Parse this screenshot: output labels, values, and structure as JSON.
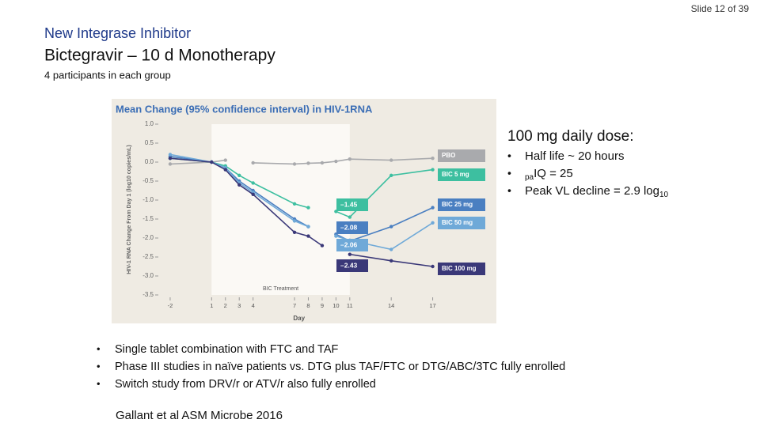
{
  "slide": {
    "number": "Slide 12 of 39",
    "kicker": "New Integrase Inhibitor",
    "title": "Bictegravir – 10 d Monotherapy",
    "subtitle": "4 participants in each group",
    "side_heading": "100 mg daily dose:",
    "side_bullets": [
      {
        "text": "Half life ~ 20 hours"
      },
      {
        "sub": "pa",
        "text": "IQ = 25"
      },
      {
        "text": "Peak VL decline = 2.9 log",
        "sub": "10"
      }
    ],
    "bullets": [
      "Single tablet combination with FTC and TAF",
      "Phase III studies in naïve patients vs. DTG plus TAF/FTC or DTG/ABC/3TC fully enrolled",
      "Switch study from DRV/r or ATV/r also fully enrolled"
    ],
    "citation": "Gallant et al ASM Microbe 2016"
  },
  "chart_data": {
    "type": "line",
    "title": "Mean Change (95% confidence interval) in HIV-1RNA",
    "x_label": "Day",
    "y_label": "HIV-1 RNA Change From Day 1 (log10 copies/mL)",
    "shaded_label": "BIC Treatment",
    "shaded_span": [
      1,
      11
    ],
    "x": [
      -2,
      1,
      2,
      3,
      4,
      7,
      8,
      9,
      10,
      11,
      14,
      17
    ],
    "xlim": [
      -3,
      18
    ],
    "xticks": [
      -2,
      1,
      2,
      3,
      4,
      7,
      8,
      9,
      10,
      11,
      14,
      17
    ],
    "ylim": [
      -3.5,
      1.0
    ],
    "yticks": [
      {
        "value": 1,
        "label": "1.0"
      },
      0.5,
      {
        "value": 0,
        "label": "0.0"
      },
      -0.5,
      {
        "value": -1,
        "label": "-1.0"
      },
      -1.5,
      {
        "value": -2,
        "label": "-2.0"
      },
      -2.5,
      {
        "value": -3,
        "label": "-3.0"
      },
      -3.5
    ],
    "series": [
      {
        "name": "PBO",
        "color": "#a9aaad",
        "values": [
          -0.05,
          0.0,
          0.05,
          null,
          -0.02,
          -0.05,
          -0.03,
          -0.02,
          0.02,
          0.08,
          0.05,
          0.1
        ]
      },
      {
        "name": "BIC 5 mg",
        "color": "#3dbfa0",
        "values": [
          0.1,
          0.0,
          -0.1,
          -0.35,
          -0.55,
          -1.1,
          -1.2,
          null,
          -1.3,
          -1.45,
          -0.35,
          -0.2
        ]
      },
      {
        "name": "BIC 25 mg",
        "color": "#4a7fc1",
        "values": [
          0.15,
          0.0,
          -0.15,
          -0.5,
          -0.75,
          -1.5,
          -1.7,
          null,
          -1.9,
          -2.08,
          -1.7,
          -1.2
        ]
      },
      {
        "name": "BIC 50 mg",
        "color": "#6fa9d8",
        "values": [
          0.2,
          0.0,
          -0.15,
          -0.55,
          -0.8,
          -1.55,
          -1.7,
          null,
          -1.95,
          -2.06,
          -2.3,
          -1.6
        ]
      },
      {
        "name": "BIC 100 mg",
        "color": "#3a3878",
        "values": [
          0.1,
          0.0,
          -0.2,
          -0.6,
          -0.85,
          -1.85,
          -1.95,
          -2.2,
          null,
          -2.43,
          -2.6,
          -2.75
        ]
      }
    ],
    "annotations": [
      {
        "text": "–1.45",
        "color": "#3dbfa0"
      },
      {
        "text": "–2.08",
        "color": "#4a7fc1"
      },
      {
        "text": "–2.06",
        "color": "#6fa9d8"
      },
      {
        "text": "–2.43",
        "color": "#3a3878"
      }
    ]
  }
}
